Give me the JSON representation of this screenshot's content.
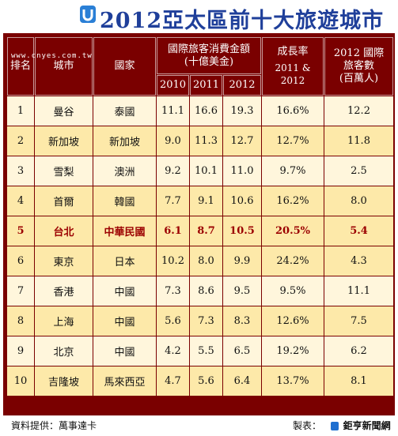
{
  "title": "2012亞太區前十大旅遊城市",
  "watermark": "www.cnyes.com.tw",
  "headers": {
    "rank": "排名",
    "city": "城市",
    "country": "國家",
    "spend_group": "國際旅客消費金額",
    "spend_unit": "(十億美金)",
    "y2010": "2010",
    "y2011": "2011",
    "y2012": "2012",
    "growth": "成長率",
    "growth_years": "2011 & 2012",
    "visitors": "2012 國際",
    "visitors2": "旅客數",
    "visitors_unit": "(百萬人)"
  },
  "rows": [
    {
      "rank": "1",
      "city": "曼谷",
      "country": "泰國",
      "v2010": "11.1",
      "v2011": "16.6",
      "v2012": "19.3",
      "growth": "16.6%",
      "visitors": "12.2"
    },
    {
      "rank": "2",
      "city": "新加坡",
      "country": "新加坡",
      "v2010": "9.0",
      "v2011": "11.3",
      "v2012": "12.7",
      "growth": "12.7%",
      "visitors": "11.8"
    },
    {
      "rank": "3",
      "city": "雪梨",
      "country": "澳洲",
      "v2010": "9.2",
      "v2011": "10.1",
      "v2012": "11.0",
      "growth": "9.7%",
      "visitors": "2.5"
    },
    {
      "rank": "4",
      "city": "首爾",
      "country": "韓國",
      "v2010": "7.7",
      "v2011": "9.1",
      "v2012": "10.6",
      "growth": "16.2%",
      "visitors": "8.0"
    },
    {
      "rank": "5",
      "city": "台北",
      "country": "中華民國",
      "v2010": "6.1",
      "v2011": "8.7",
      "v2012": "10.5",
      "growth": "20.5%",
      "visitors": "5.4"
    },
    {
      "rank": "6",
      "city": "東京",
      "country": "日本",
      "v2010": "10.2",
      "v2011": "8.0",
      "v2012": "9.9",
      "growth": "24.2%",
      "visitors": "4.3"
    },
    {
      "rank": "7",
      "city": "香港",
      "country": "中國",
      "v2010": "7.3",
      "v2011": "8.6",
      "v2012": "9.5",
      "growth": "9.5%",
      "visitors": "11.1"
    },
    {
      "rank": "8",
      "city": "上海",
      "country": "中國",
      "v2010": "5.6",
      "v2011": "7.3",
      "v2012": "8.3",
      "growth": "12.6%",
      "visitors": "7.5"
    },
    {
      "rank": "9",
      "city": "北京",
      "country": "中國",
      "v2010": "4.2",
      "v2011": "5.5",
      "v2012": "6.5",
      "growth": "19.2%",
      "visitors": "6.2"
    },
    {
      "rank": "10",
      "city": "吉隆坡",
      "country": "馬來西亞",
      "v2010": "4.7",
      "v2011": "5.6",
      "v2012": "6.4",
      "growth": "13.7%",
      "visitors": "8.1"
    }
  ],
  "footer": {
    "source": "資料提供：萬事達卡",
    "made_by": "製表：",
    "brand": "鉅亨新聞網"
  },
  "colors": {
    "header_bg": "#7a0000",
    "row_light": "#fff6dc",
    "row_dark": "#fde9a9",
    "highlight_text": "#9b0000",
    "title_blue": "#1f3f9a"
  }
}
